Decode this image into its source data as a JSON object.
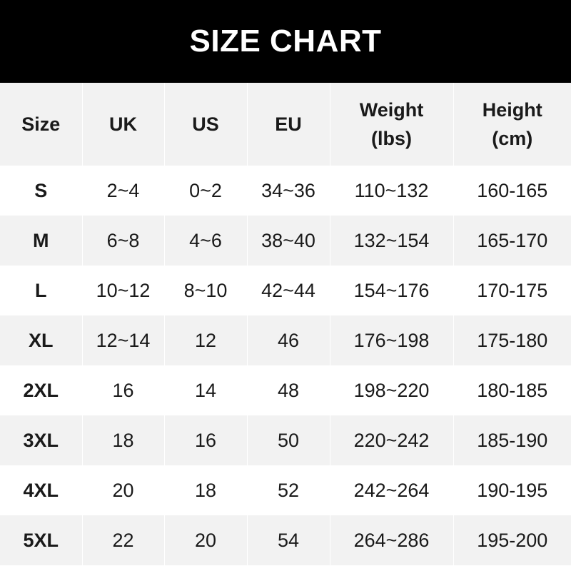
{
  "title": "SIZE CHART",
  "columns": [
    "Size",
    "UK",
    "US",
    "EU",
    "Weight (lbs)",
    "Height (cm)"
  ],
  "column_lines": [
    [
      "Size"
    ],
    [
      "UK"
    ],
    [
      "US"
    ],
    [
      "EU"
    ],
    [
      "Weight",
      "(lbs)"
    ],
    [
      "Height",
      "(cm)"
    ]
  ],
  "rows": [
    [
      "S",
      "2~4",
      "0~2",
      "34~36",
      "110~132",
      "160-165"
    ],
    [
      "M",
      "6~8",
      "4~6",
      "38~40",
      "132~154",
      "165-170"
    ],
    [
      "L",
      "10~12",
      "8~10",
      "42~44",
      "154~176",
      "170-175"
    ],
    [
      "XL",
      "12~14",
      "12",
      "46",
      "176~198",
      "175-180"
    ],
    [
      "2XL",
      "16",
      "14",
      "48",
      "198~220",
      "180-185"
    ],
    [
      "3XL",
      "18",
      "16",
      "50",
      "220~242",
      "185-190"
    ],
    [
      "4XL",
      "20",
      "18",
      "52",
      "242~264",
      "190-195"
    ],
    [
      "5XL",
      "22",
      "20",
      "54",
      "264~286",
      "195-200"
    ]
  ],
  "colors": {
    "header_bg": "#000000",
    "alt_row_bg": "#f2f2f2",
    "text": "#1a1a1a"
  }
}
